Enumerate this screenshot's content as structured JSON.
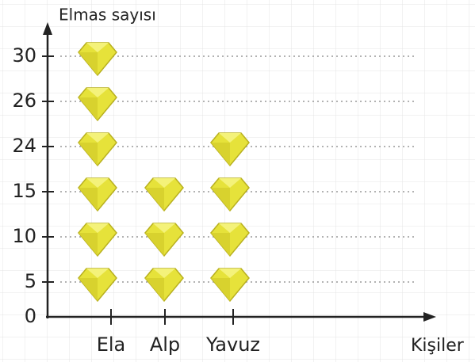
{
  "chart_data": {
    "type": "pictograph",
    "y_label": "Elmas sayısı",
    "x_label": "Kişiler",
    "categories": [
      "Ela",
      "Alp",
      "Yavuz"
    ],
    "values": [
      30,
      15,
      24
    ],
    "yticks": [
      0,
      5,
      10,
      15,
      24,
      26,
      30
    ],
    "color": "#e6e23a",
    "grid": true
  }
}
